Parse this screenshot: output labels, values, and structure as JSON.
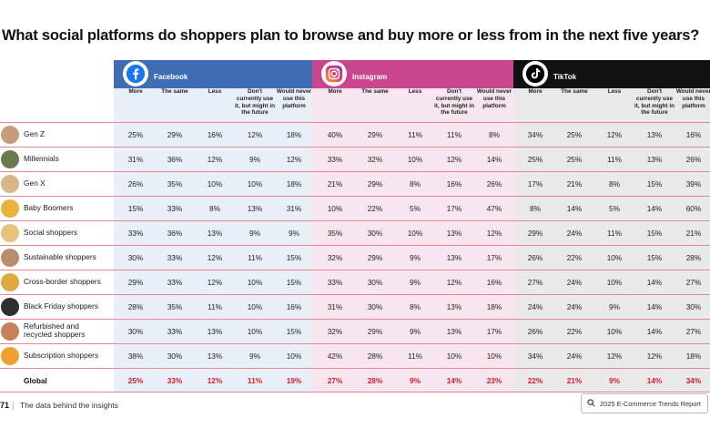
{
  "title": "What social platforms do shoppers plan to browse and buy more or less from in the next five years?",
  "platforms": [
    {
      "name": "Facebook",
      "color": "#3f6db5"
    },
    {
      "name": "Instagram",
      "color": "#c9468f"
    },
    {
      "name": "TikTok",
      "color": "#111111"
    }
  ],
  "subheaders": [
    "More",
    "The same",
    "Less",
    "Don't currently use it, but might in the future",
    "Would never use this platform"
  ],
  "rows": [
    {
      "label": "Gen Z",
      "values": [
        "25%",
        "29%",
        "16%",
        "12%",
        "18%",
        "40%",
        "29%",
        "11%",
        "11%",
        "8%",
        "34%",
        "25%",
        "12%",
        "13%",
        "16%"
      ]
    },
    {
      "label": "Millennials",
      "values": [
        "31%",
        "36%",
        "12%",
        "9%",
        "12%",
        "33%",
        "32%",
        "10%",
        "12%",
        "14%",
        "25%",
        "25%",
        "11%",
        "13%",
        "26%"
      ]
    },
    {
      "label": "Gen X",
      "values": [
        "26%",
        "35%",
        "10%",
        "10%",
        "18%",
        "21%",
        "29%",
        "8%",
        "16%",
        "26%",
        "17%",
        "21%",
        "8%",
        "15%",
        "39%"
      ]
    },
    {
      "label": "Baby Boomers",
      "values": [
        "15%",
        "33%",
        "8%",
        "13%",
        "31%",
        "10%",
        "22%",
        "5%",
        "17%",
        "47%",
        "8%",
        "14%",
        "5%",
        "14%",
        "60%"
      ]
    },
    {
      "label": "Social shoppers",
      "values": [
        "33%",
        "36%",
        "13%",
        "9%",
        "9%",
        "35%",
        "30%",
        "10%",
        "13%",
        "12%",
        "29%",
        "24%",
        "11%",
        "15%",
        "21%"
      ]
    },
    {
      "label": "Sustainable shoppers",
      "values": [
        "30%",
        "33%",
        "12%",
        "11%",
        "15%",
        "32%",
        "29%",
        "9%",
        "13%",
        "17%",
        "26%",
        "22%",
        "10%",
        "15%",
        "28%"
      ]
    },
    {
      "label": "Cross-border shoppers",
      "values": [
        "29%",
        "33%",
        "12%",
        "10%",
        "15%",
        "33%",
        "30%",
        "9%",
        "12%",
        "16%",
        "27%",
        "24%",
        "10%",
        "14%",
        "27%"
      ]
    },
    {
      "label": "Black Friday shoppers",
      "values": [
        "28%",
        "35%",
        "11%",
        "10%",
        "16%",
        "31%",
        "30%",
        "8%",
        "13%",
        "18%",
        "24%",
        "24%",
        "9%",
        "14%",
        "30%"
      ]
    },
    {
      "label": "Refurbished and recycled shoppers",
      "values": [
        "30%",
        "33%",
        "13%",
        "10%",
        "15%",
        "32%",
        "29%",
        "9%",
        "13%",
        "17%",
        "26%",
        "22%",
        "10%",
        "14%",
        "27%"
      ]
    },
    {
      "label": "Subscription shoppers",
      "values": [
        "38%",
        "30%",
        "13%",
        "9%",
        "10%",
        "42%",
        "28%",
        "11%",
        "10%",
        "10%",
        "34%",
        "24%",
        "12%",
        "12%",
        "18%"
      ]
    }
  ],
  "global": {
    "label": "Global",
    "values": [
      "25%",
      "33%",
      "12%",
      "11%",
      "19%",
      "27%",
      "28%",
      "9%",
      "14%",
      "23%",
      "22%",
      "21%",
      "9%",
      "14%",
      "34%"
    ]
  },
  "footer": {
    "page_number": "71",
    "separator": "|",
    "text": "The data behind the insights",
    "report_button": "2025 E-Commerce Trends Report"
  },
  "icons": [
    "facebook-icon",
    "instagram-icon",
    "tiktok-icon",
    "search-icon"
  ]
}
